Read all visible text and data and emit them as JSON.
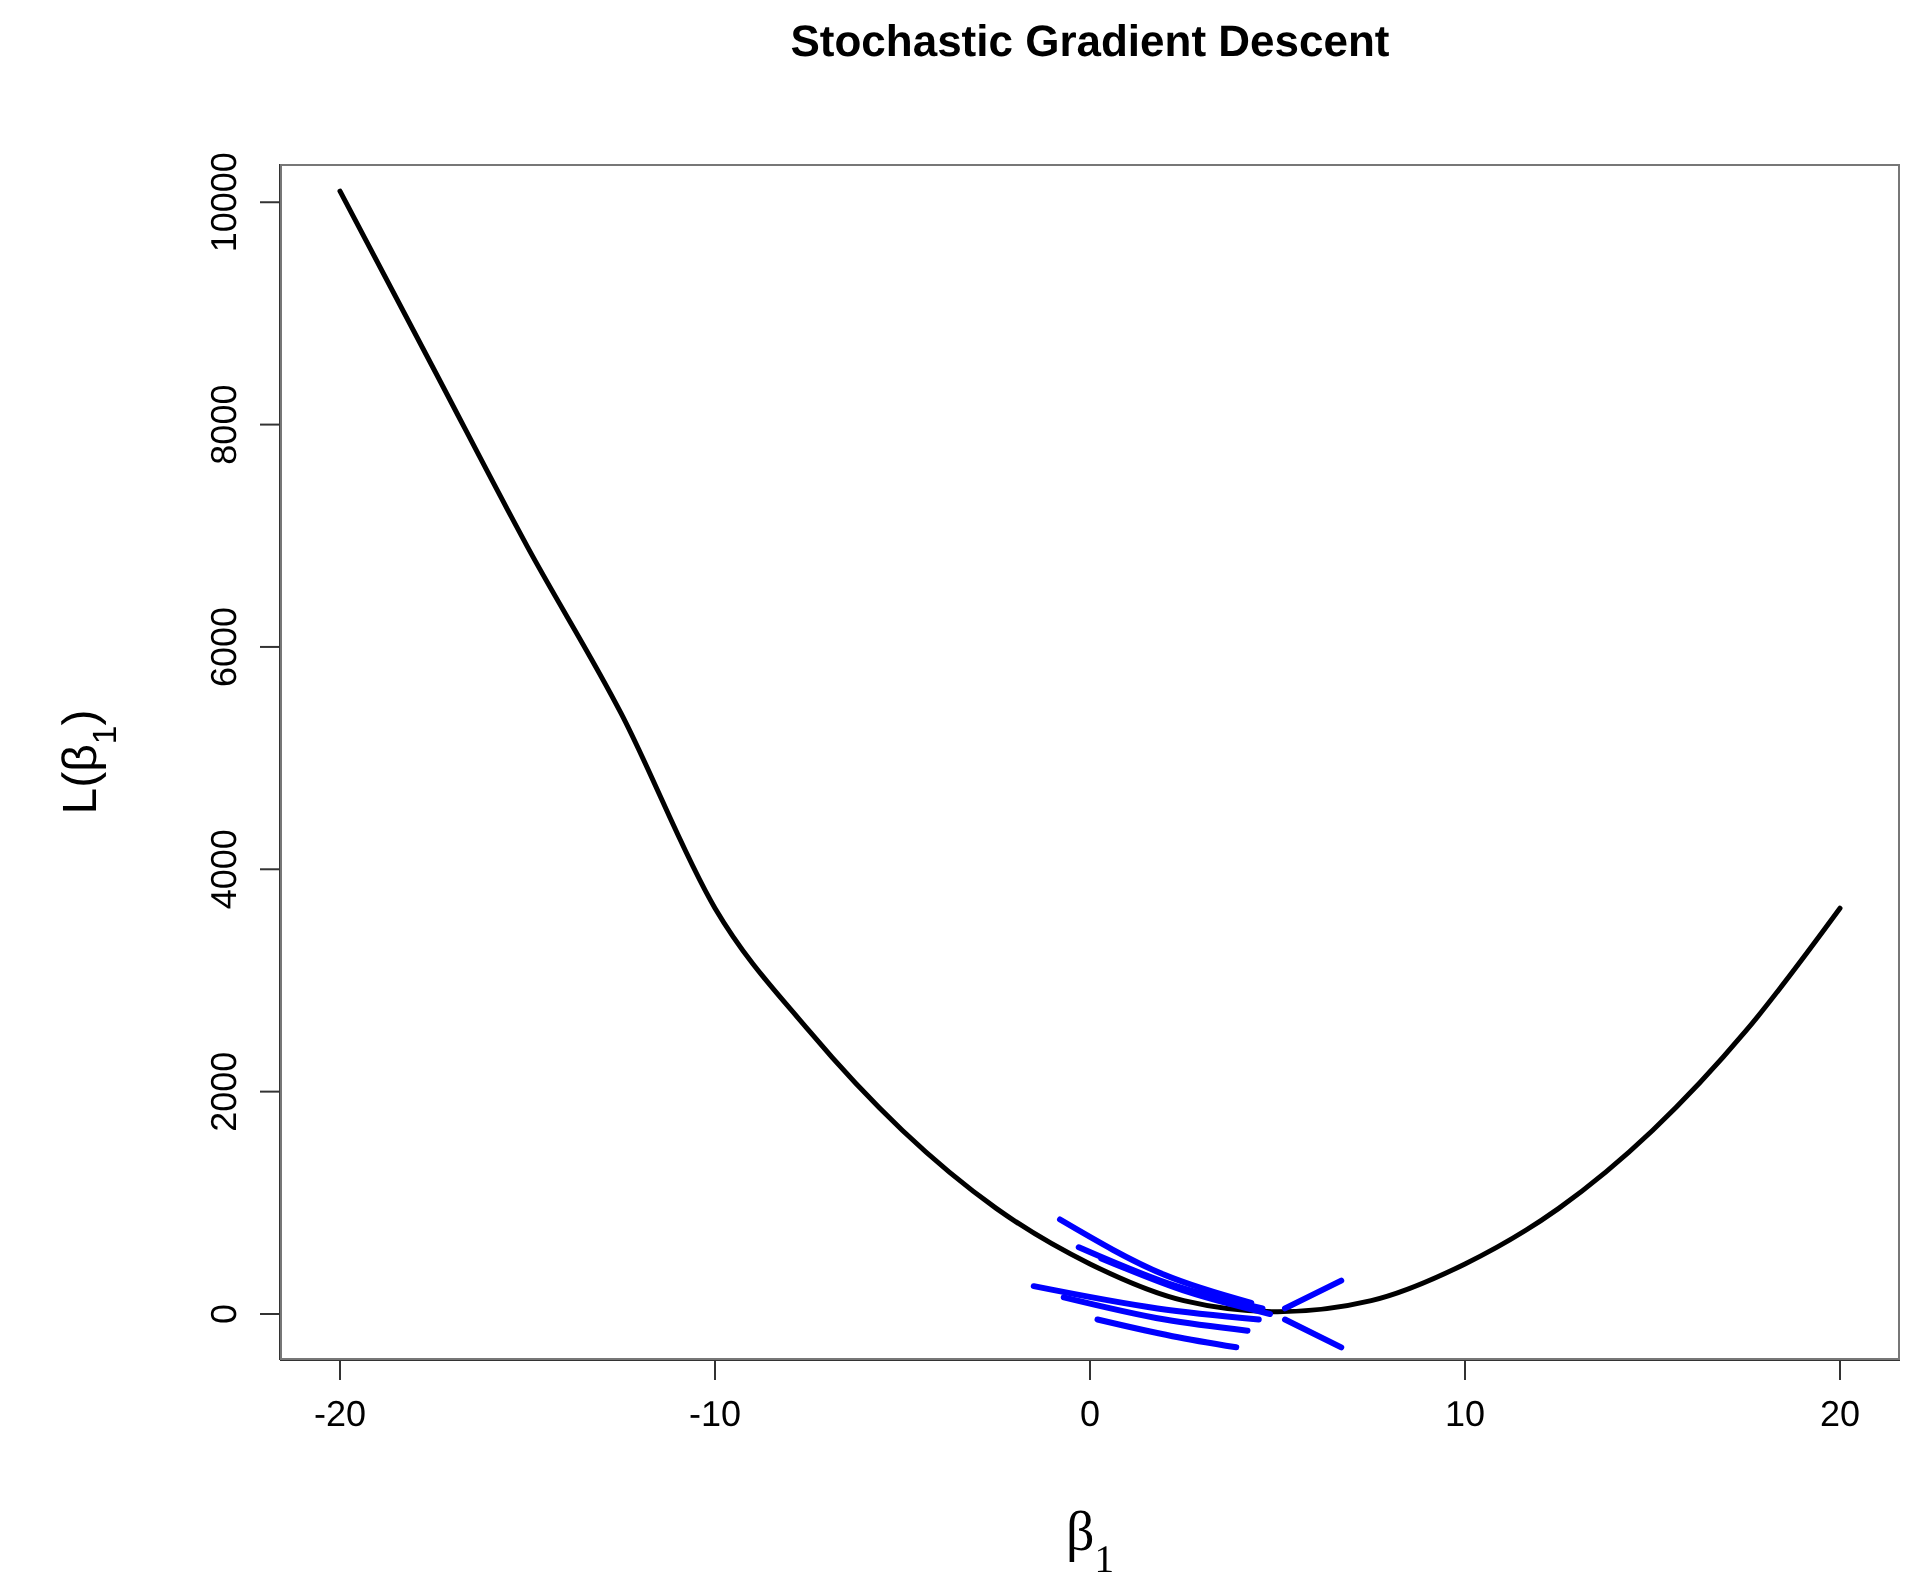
{
  "chart_data": {
    "type": "line",
    "title": "Stochastic Gradient Descent",
    "xlabel": "β$_{1}$",
    "ylabel": "L(β$_{1}$)",
    "xlim": [
      -21.6,
      21.6
    ],
    "ylim": [
      -414,
      10344
    ],
    "xticks": [
      -20,
      -10,
      0,
      10,
      20
    ],
    "yticks": [
      0,
      2000,
      4000,
      6000,
      8000,
      10000
    ],
    "grid": false,
    "marker": "none",
    "line_style": "solid",
    "series": [
      {
        "color": "#000000",
        "x": [
          -20,
          -17.5,
          -15,
          -12.5,
          -10,
          -7.5,
          -5,
          -2.5,
          0,
          2.5,
          5,
          7.5,
          10,
          12.5,
          15,
          17.5,
          20
        ],
        "values": [
          10100,
          8500,
          6900,
          5400,
          3650,
          2550,
          1650,
          950,
          450,
          120,
          20,
          120,
          450,
          950,
          1650,
          2550,
          3650
        ]
      },
      {
        "color": "#0000ff",
        "x": [
          -0.8,
          2,
          4.3
        ],
        "values": [
          850,
          350,
          100
        ]
      },
      {
        "color": "#0000ff",
        "x": [
          -0.3,
          2.3,
          4.6
        ],
        "values": [
          600,
          250,
          50
        ]
      },
      {
        "color": "#0000ff",
        "x": [
          0.3,
          2.6,
          4.8
        ],
        "values": [
          500,
          200,
          0
        ]
      },
      {
        "color": "#0000ff",
        "x": [
          -1.5,
          1.8,
          4.5
        ],
        "values": [
          250,
          50,
          -50
        ]
      },
      {
        "color": "#0000ff",
        "x": [
          -0.7,
          2,
          4.2
        ],
        "values": [
          150,
          -50,
          -150
        ]
      },
      {
        "color": "#0000ff",
        "x": [
          0.2,
          2.2,
          3.9
        ],
        "values": [
          -50,
          -200,
          -300
        ]
      },
      {
        "color": "#0000ff",
        "x": [
          5.2,
          6.7
        ],
        "values": [
          50,
          300
        ]
      },
      {
        "color": "#0000ff",
        "x": [
          5.2,
          6.7
        ],
        "values": [
          -50,
          -300
        ]
      }
    ]
  }
}
